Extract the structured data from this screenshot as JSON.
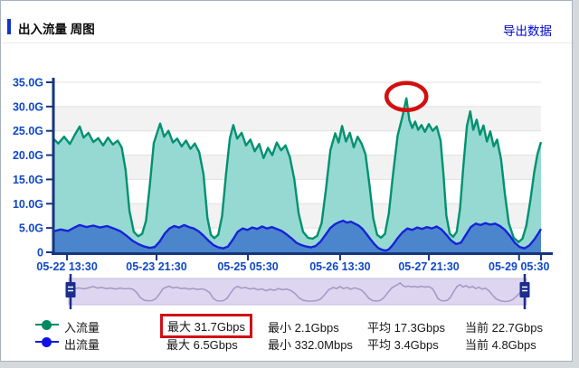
{
  "header": {
    "title": "出入流量 周图",
    "export_link": "导出数据"
  },
  "chart_data": {
    "type": "area",
    "title": "出入流量 周图",
    "y_unit": "Gbps",
    "ylim": [
      0,
      35
    ],
    "y_ticks": [
      "35.0G",
      "30.0G",
      "25.0G",
      "20.0G",
      "15.0G",
      "10.0G",
      "5.0G",
      "0"
    ],
    "x_ticks": [
      {
        "label": "05-22 13:30",
        "f": 0.028
      },
      {
        "label": "05-23 21:30",
        "f": 0.2115
      },
      {
        "label": "05-25 05:30",
        "f": 0.399
      },
      {
        "label": "05-26 13:30",
        "f": 0.588
      },
      {
        "label": "05-27 21:30",
        "f": 0.77
      },
      {
        "label": "05-29 05:30",
        "f": 0.955
      }
    ],
    "grid": "alternating-horizontal-bands",
    "band_colors": [
      "#ffffff",
      "#f2f2f2"
    ],
    "axis_color": "#16357d",
    "tick_label_color": "#1048c8",
    "legend_position": "bottom-left",
    "series": [
      {
        "name": "入流量",
        "line_color": "#00916e",
        "fill_color": "#96d9d2",
        "max": "31.7Gbps",
        "min": "2.1Gbps",
        "avg": "17.3Gbps",
        "current": "22.7Gbps",
        "points": [
          [
            0,
            23.4
          ],
          [
            0.01,
            22.4
          ],
          [
            0.022,
            23.8
          ],
          [
            0.034,
            22.3
          ],
          [
            0.044,
            24.2
          ],
          [
            0.054,
            25.9
          ],
          [
            0.062,
            23.6
          ],
          [
            0.072,
            24.6
          ],
          [
            0.082,
            22.7
          ],
          [
            0.092,
            23.5
          ],
          [
            0.102,
            22
          ],
          [
            0.112,
            23.6
          ],
          [
            0.122,
            22.2
          ],
          [
            0.132,
            23
          ],
          [
            0.14,
            21.6
          ],
          [
            0.148,
            17
          ],
          [
            0.156,
            8.5
          ],
          [
            0.165,
            4.2
          ],
          [
            0.174,
            3.3
          ],
          [
            0.182,
            3.8
          ],
          [
            0.19,
            6.5
          ],
          [
            0.198,
            14
          ],
          [
            0.206,
            22.5
          ],
          [
            0.219,
            26.5
          ],
          [
            0.227,
            23.8
          ],
          [
            0.236,
            25
          ],
          [
            0.245,
            22.6
          ],
          [
            0.254,
            23.4
          ],
          [
            0.263,
            21.8
          ],
          [
            0.272,
            23
          ],
          [
            0.281,
            21.3
          ],
          [
            0.29,
            22.4
          ],
          [
            0.299,
            20.6
          ],
          [
            0.308,
            16
          ],
          [
            0.316,
            7
          ],
          [
            0.323,
            3.6
          ],
          [
            0.33,
            2.9
          ],
          [
            0.338,
            3.6
          ],
          [
            0.346,
            7.5
          ],
          [
            0.354,
            16
          ],
          [
            0.362,
            23.5
          ],
          [
            0.369,
            26.2
          ],
          [
            0.377,
            23.4
          ],
          [
            0.386,
            24.6
          ],
          [
            0.395,
            22
          ],
          [
            0.404,
            23.2
          ],
          [
            0.413,
            20.8
          ],
          [
            0.422,
            22.3
          ],
          [
            0.431,
            19.4
          ],
          [
            0.44,
            21.5
          ],
          [
            0.449,
            20
          ],
          [
            0.458,
            22.6
          ],
          [
            0.467,
            21
          ],
          [
            0.476,
            22
          ],
          [
            0.485,
            19.6
          ],
          [
            0.494,
            15
          ],
          [
            0.503,
            8
          ],
          [
            0.512,
            4.2
          ],
          [
            0.522,
            3
          ],
          [
            0.532,
            2.8
          ],
          [
            0.541,
            3.4
          ],
          [
            0.55,
            6
          ],
          [
            0.559,
            13
          ],
          [
            0.568,
            21
          ],
          [
            0.578,
            24.5
          ],
          [
            0.585,
            22.6
          ],
          [
            0.592,
            26
          ],
          [
            0.6,
            22.8
          ],
          [
            0.608,
            24.6
          ],
          [
            0.616,
            21.6
          ],
          [
            0.624,
            23.8
          ],
          [
            0.632,
            22.4
          ],
          [
            0.64,
            20.2
          ],
          [
            0.648,
            14
          ],
          [
            0.656,
            7
          ],
          [
            0.664,
            3.6
          ],
          [
            0.672,
            3
          ],
          [
            0.68,
            3.8
          ],
          [
            0.688,
            8
          ],
          [
            0.696,
            15.5
          ],
          [
            0.706,
            24
          ],
          [
            0.716,
            28
          ],
          [
            0.724,
            31.7
          ],
          [
            0.73,
            27.2
          ],
          [
            0.736,
            25.6
          ],
          [
            0.742,
            26.9
          ],
          [
            0.748,
            25.2
          ],
          [
            0.755,
            26.2
          ],
          [
            0.762,
            24.8
          ],
          [
            0.77,
            26.4
          ],
          [
            0.778,
            25
          ],
          [
            0.786,
            25.9
          ],
          [
            0.794,
            23
          ],
          [
            0.8,
            16
          ],
          [
            0.806,
            7.5
          ],
          [
            0.813,
            3.8
          ],
          [
            0.82,
            3.2
          ],
          [
            0.827,
            4.2
          ],
          [
            0.834,
            9
          ],
          [
            0.841,
            18
          ],
          [
            0.848,
            26
          ],
          [
            0.855,
            29
          ],
          [
            0.861,
            25.2
          ],
          [
            0.868,
            27.3
          ],
          [
            0.875,
            24.2
          ],
          [
            0.882,
            26.1
          ],
          [
            0.889,
            22.8
          ],
          [
            0.896,
            24.9
          ],
          [
            0.903,
            21.8
          ],
          [
            0.91,
            23.2
          ],
          [
            0.918,
            19.2
          ],
          [
            0.926,
            12
          ],
          [
            0.934,
            6
          ],
          [
            0.944,
            3
          ],
          [
            0.954,
            2.1
          ],
          [
            0.962,
            2.8
          ],
          [
            0.97,
            5.5
          ],
          [
            0.978,
            10.5
          ],
          [
            0.986,
            16.5
          ],
          [
            0.993,
            20.3
          ],
          [
            1,
            22.7
          ]
        ]
      },
      {
        "name": "出流量",
        "line_color": "#1822d8",
        "fill_color": "#4b86cd",
        "max": "6.5Gbps",
        "min": "332.0Mbps",
        "avg": "3.4Gbps",
        "current": "4.8Gbps",
        "points": [
          [
            0,
            4.3
          ],
          [
            0.015,
            4.7
          ],
          [
            0.03,
            4.4
          ],
          [
            0.045,
            5.2
          ],
          [
            0.054,
            5.6
          ],
          [
            0.068,
            5.2
          ],
          [
            0.082,
            5.5
          ],
          [
            0.096,
            5.1
          ],
          [
            0.11,
            5.4
          ],
          [
            0.124,
            4.9
          ],
          [
            0.138,
            4.3
          ],
          [
            0.15,
            3.4
          ],
          [
            0.162,
            2.4
          ],
          [
            0.174,
            1.7
          ],
          [
            0.186,
            1.2
          ],
          [
            0.198,
            0.9
          ],
          [
            0.208,
            1.1
          ],
          [
            0.218,
            2.2
          ],
          [
            0.228,
            3.8
          ],
          [
            0.238,
            4.9
          ],
          [
            0.248,
            5.4
          ],
          [
            0.258,
            5.1
          ],
          [
            0.268,
            5.6
          ],
          [
            0.278,
            5.2
          ],
          [
            0.288,
            4.9
          ],
          [
            0.298,
            4.3
          ],
          [
            0.308,
            3.4
          ],
          [
            0.318,
            2.4
          ],
          [
            0.328,
            1.5
          ],
          [
            0.338,
            1
          ],
          [
            0.348,
            0.8
          ],
          [
            0.358,
            1.2
          ],
          [
            0.368,
            2.6
          ],
          [
            0.378,
            4.2
          ],
          [
            0.388,
            4.9
          ],
          [
            0.398,
            4.6
          ],
          [
            0.408,
            5.1
          ],
          [
            0.418,
            4.8
          ],
          [
            0.428,
            5.3
          ],
          [
            0.438,
            4.9
          ],
          [
            0.448,
            5.2
          ],
          [
            0.458,
            4.8
          ],
          [
            0.468,
            4.4
          ],
          [
            0.478,
            3.7
          ],
          [
            0.488,
            2.9
          ],
          [
            0.498,
            2
          ],
          [
            0.508,
            1.5
          ],
          [
            0.518,
            1.2
          ],
          [
            0.528,
            1
          ],
          [
            0.538,
            1.3
          ],
          [
            0.548,
            2.2
          ],
          [
            0.558,
            3.6
          ],
          [
            0.568,
            5
          ],
          [
            0.578,
            5.8
          ],
          [
            0.586,
            6.2
          ],
          [
            0.594,
            6.5
          ],
          [
            0.602,
            6.1
          ],
          [
            0.61,
            6.3
          ],
          [
            0.618,
            5.9
          ],
          [
            0.626,
            5.5
          ],
          [
            0.634,
            4.8
          ],
          [
            0.642,
            3.8
          ],
          [
            0.65,
            2.7
          ],
          [
            0.658,
            1.7
          ],
          [
            0.666,
            0.9
          ],
          [
            0.674,
            0.5
          ],
          [
            0.681,
            0.33
          ],
          [
            0.688,
            0.6
          ],
          [
            0.696,
            1.5
          ],
          [
            0.706,
            2.9
          ],
          [
            0.716,
            4.1
          ],
          [
            0.726,
            4.9
          ],
          [
            0.736,
            4.6
          ],
          [
            0.746,
            5.1
          ],
          [
            0.756,
            4.8
          ],
          [
            0.766,
            5.2
          ],
          [
            0.776,
            4.9
          ],
          [
            0.786,
            5.3
          ],
          [
            0.796,
            4.7
          ],
          [
            0.806,
            3.6
          ],
          [
            0.816,
            2.4
          ],
          [
            0.826,
            1.7
          ],
          [
            0.836,
            2
          ],
          [
            0.846,
            3.6
          ],
          [
            0.856,
            5.2
          ],
          [
            0.866,
            5.9
          ],
          [
            0.876,
            5.6
          ],
          [
            0.886,
            6
          ],
          [
            0.896,
            5.7
          ],
          [
            0.906,
            5.9
          ],
          [
            0.916,
            5.4
          ],
          [
            0.926,
            4.6
          ],
          [
            0.936,
            3.4
          ],
          [
            0.946,
            2
          ],
          [
            0.956,
            1.1
          ],
          [
            0.966,
            0.8
          ],
          [
            0.976,
            1.4
          ],
          [
            0.986,
            2.6
          ],
          [
            0.994,
            3.8
          ],
          [
            1,
            4.8
          ]
        ]
      }
    ],
    "annotations": [
      {
        "type": "ellipse",
        "series": "入流量",
        "f": 0.724,
        "value": 31.7,
        "color": "#d40f0f",
        "meaning": "circled weekly peak"
      },
      {
        "type": "box",
        "target": "最大 31.7Gbps",
        "color": "#ce1115",
        "meaning": "highlighted max stat"
      }
    ]
  },
  "legend": {
    "rows": [
      {
        "label": "入流量",
        "marker_color": "#008862",
        "max": "最大 31.7Gbps",
        "min": "最小 2.1Gbps",
        "avg": "平均 17.3Gbps",
        "cur": "当前 22.7Gbps",
        "max_boxed": true
      },
      {
        "label": "出流量",
        "marker_color": "#1111e0",
        "max": "最大 6.5Gbps",
        "min": "最小 332.0Mbps",
        "avg": "平均 3.4Gbps",
        "cur": "当前 4.8Gbps",
        "max_boxed": false
      }
    ]
  },
  "slider": {
    "track_color": "#ded6f0",
    "border_color": "#c5bce2",
    "wave_color": "#a39bc4",
    "handle_color": "#1b2d8e"
  }
}
